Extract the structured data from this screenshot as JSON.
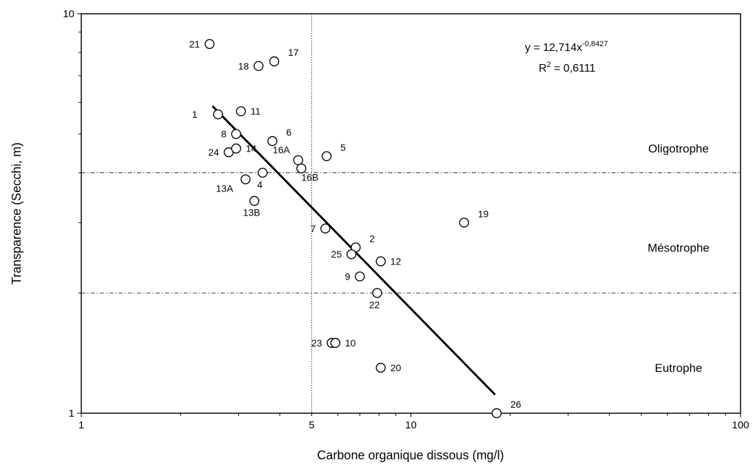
{
  "chart_data": {
    "type": "scatter",
    "xlabel": "Carbone organique dissous (mg/l)",
    "ylabel": "Transparence (Secchi, m)",
    "xscale": "log",
    "yscale": "log",
    "xlim": [
      1,
      100
    ],
    "ylim": [
      1,
      10
    ],
    "x_ticks": [
      {
        "value": 1,
        "label": "1"
      },
      {
        "value": 5,
        "label": "5"
      },
      {
        "value": 10,
        "label": "10"
      },
      {
        "value": 100,
        "label": "100"
      }
    ],
    "y_ticks": [
      {
        "value": 1,
        "label": "1"
      },
      {
        "value": 10,
        "label": "10"
      }
    ],
    "reference_lines": {
      "vertical_x": 5,
      "horizontal_y": [
        4,
        2
      ]
    },
    "zones": [
      {
        "label": "Oligotrophe",
        "y": 4.6
      },
      {
        "label": "Mésotrophe",
        "y": 2.6
      },
      {
        "label": "Eutrophe",
        "y": 1.3
      }
    ],
    "trendline": {
      "equation_text": "y = 12,714x",
      "exponent_text": "-0,8427",
      "r2_prefix": "R",
      "r2_sup": "2",
      "r2_value": " = 0,6111",
      "a": 12.714,
      "b": -0.8427,
      "x_range": [
        2.5,
        18
      ]
    },
    "points": [
      {
        "id": "21",
        "x": 2.45,
        "y": 8.4,
        "label_pos": "left"
      },
      {
        "id": "17",
        "x": 3.85,
        "y": 7.6,
        "label_pos": "upright"
      },
      {
        "id": "18",
        "x": 3.45,
        "y": 7.4,
        "label_pos": "left"
      },
      {
        "id": "1",
        "x": 2.6,
        "y": 5.6,
        "label_pos": "farleft"
      },
      {
        "id": "11",
        "x": 3.05,
        "y": 5.7,
        "label_pos": "right"
      },
      {
        "id": "8",
        "x": 2.95,
        "y": 5.0,
        "label_pos": "left"
      },
      {
        "id": "6",
        "x": 3.8,
        "y": 4.8,
        "label_pos": "upright"
      },
      {
        "id": "24",
        "x": 2.8,
        "y": 4.5,
        "label_pos": "left"
      },
      {
        "id": "14",
        "x": 2.95,
        "y": 4.6,
        "label_pos": "right"
      },
      {
        "id": "16A",
        "x": 4.55,
        "y": 4.3,
        "label_pos": "upleft"
      },
      {
        "id": "5",
        "x": 5.55,
        "y": 4.4,
        "label_pos": "upright"
      },
      {
        "id": "16B",
        "x": 4.65,
        "y": 4.1,
        "label_pos": "downright"
      },
      {
        "id": "13A",
        "x": 3.15,
        "y": 3.85,
        "label_pos": "downleft"
      },
      {
        "id": "4",
        "x": 3.55,
        "y": 4.0,
        "label_pos": "down"
      },
      {
        "id": "13B",
        "x": 3.35,
        "y": 3.4,
        "label_pos": "down"
      },
      {
        "id": "19",
        "x": 14.5,
        "y": 3.0,
        "label_pos": "upright"
      },
      {
        "id": "7",
        "x": 5.5,
        "y": 2.9,
        "label_pos": "left"
      },
      {
        "id": "2",
        "x": 6.8,
        "y": 2.6,
        "label_pos": "upright"
      },
      {
        "id": "25",
        "x": 6.6,
        "y": 2.5,
        "label_pos": "left"
      },
      {
        "id": "12",
        "x": 8.1,
        "y": 2.4,
        "label_pos": "right"
      },
      {
        "id": "9",
        "x": 7.0,
        "y": 2.2,
        "label_pos": "left"
      },
      {
        "id": "22",
        "x": 7.9,
        "y": 2.0,
        "label_pos": "down"
      },
      {
        "id": "23",
        "x": 5.75,
        "y": 1.5,
        "label_pos": "left"
      },
      {
        "id": "10",
        "x": 5.9,
        "y": 1.5,
        "label_pos": "right"
      },
      {
        "id": "20",
        "x": 8.1,
        "y": 1.3,
        "label_pos": "right"
      },
      {
        "id": "26",
        "x": 18.2,
        "y": 1.0,
        "label_pos": "upright"
      }
    ]
  }
}
